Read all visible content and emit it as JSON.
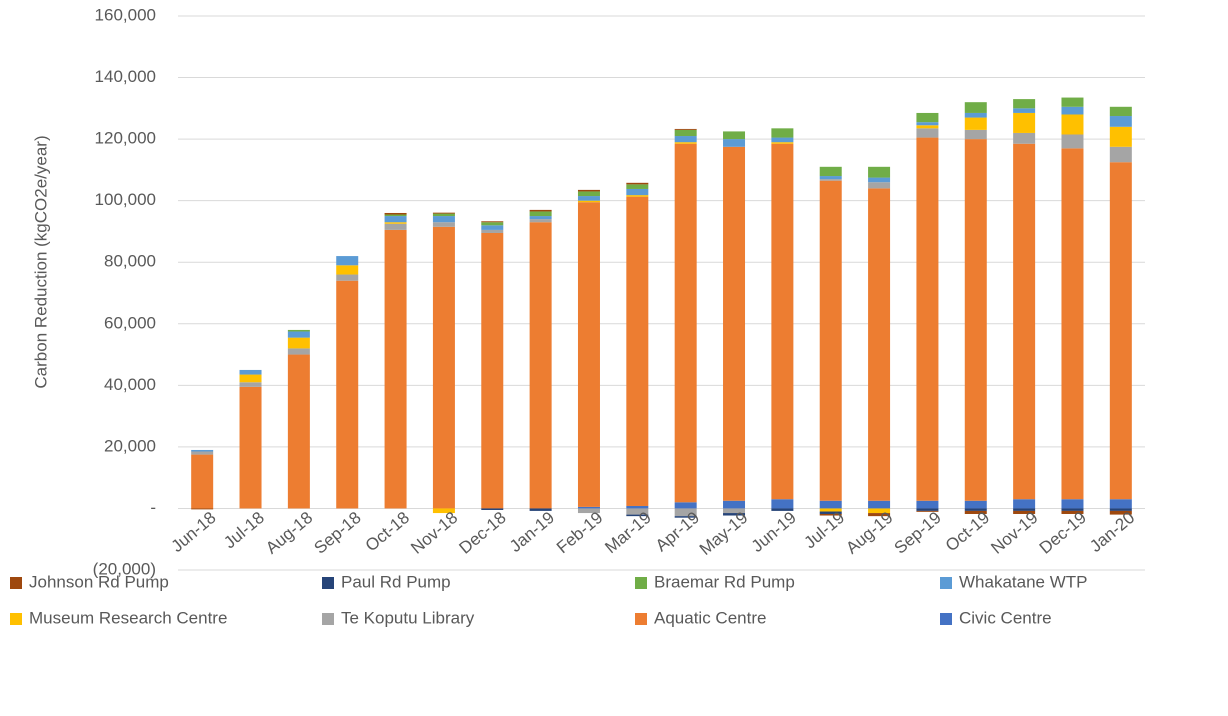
{
  "chart_data": {
    "type": "stacked_bar",
    "y_label": "Carbon Reduction (kgCO2e/year)",
    "categories": [
      "Jun-18",
      "Jul-18",
      "Aug-18",
      "Sep-18",
      "Oct-18",
      "Nov-18",
      "Dec-18",
      "Jan-19",
      "Feb-19",
      "Mar-19",
      "Apr-19",
      "May-19",
      "Jun-19",
      "Jul-19",
      "Aug-19",
      "Sep-19",
      "Oct-19",
      "Nov-19",
      "Dec-19",
      "Jan-20"
    ],
    "series": [
      {
        "name": "Johnson Rd Pump",
        "color": "#9e480e",
        "values": [
          -300,
          0,
          0,
          0,
          500,
          300,
          300,
          500,
          500,
          500,
          300,
          0,
          0,
          -500,
          -1000,
          -300,
          -1000,
          -1000,
          -1000,
          -1200
        ]
      },
      {
        "name": "Paul Rd Pump",
        "color": "#264478",
        "values": [
          0,
          0,
          0,
          0,
          0,
          0,
          -500,
          -800,
          0,
          -500,
          -500,
          -800,
          -800,
          -800,
          0,
          -800,
          -800,
          -800,
          -800,
          -800
        ]
      },
      {
        "name": "Braemar Rd Pump",
        "color": "#70ad47",
        "values": [
          0,
          0,
          500,
          0,
          500,
          800,
          1000,
          1500,
          1500,
          1500,
          2000,
          2500,
          3000,
          3000,
          3500,
          3000,
          3500,
          3000,
          3000,
          3000
        ]
      },
      {
        "name": "Whakatane WTP",
        "color": "#5b9bd5",
        "values": [
          500,
          1500,
          2000,
          3000,
          2000,
          2000,
          1500,
          1000,
          1500,
          2000,
          2000,
          2500,
          1500,
          1000,
          1500,
          1000,
          1500,
          1500,
          2500,
          3500
        ]
      },
      {
        "name": "Museum Research Centre",
        "color": "#ffc000",
        "values": [
          0,
          2500,
          3500,
          3000,
          500,
          -1500,
          0,
          0,
          500,
          500,
          500,
          0,
          500,
          -1000,
          -1500,
          1000,
          4000,
          6500,
          6500,
          6500
        ]
      },
      {
        "name": "Te Koputu Library",
        "color": "#a5a5a5",
        "values": [
          1000,
          1500,
          2000,
          2000,
          2000,
          1500,
          1000,
          1000,
          -1500,
          -2000,
          -2500,
          -1500,
          0,
          500,
          2000,
          3000,
          3000,
          3500,
          4500,
          5000
        ]
      },
      {
        "name": "Aquatic Centre",
        "color": "#ed7d31",
        "values": [
          17500,
          39500,
          50000,
          74000,
          90500,
          91500,
          89500,
          93000,
          99000,
          100500,
          116500,
          115000,
          115500,
          104000,
          101500,
          118000,
          117500,
          115500,
          114000,
          109500
        ]
      },
      {
        "name": "Civic Centre",
        "color": "#4472c4",
        "values": [
          0,
          0,
          0,
          0,
          0,
          0,
          0,
          0,
          500,
          800,
          2000,
          2500,
          3000,
          2500,
          2500,
          2500,
          2500,
          3000,
          3000,
          3000
        ]
      }
    ],
    "ylim": [
      -20000,
      160000
    ],
    "yticks": [
      {
        "value": -20000,
        "label": "(20,000)"
      },
      {
        "value": 0,
        "label": "-"
      },
      {
        "value": 20000,
        "label": "20,000"
      },
      {
        "value": 40000,
        "label": "40,000"
      },
      {
        "value": 60000,
        "label": "60,000"
      },
      {
        "value": 80000,
        "label": "80,000"
      },
      {
        "value": 100000,
        "label": "100,000"
      },
      {
        "value": 120000,
        "label": "120,000"
      },
      {
        "value": 140000,
        "label": "140,000"
      },
      {
        "value": 160000,
        "label": "160,000"
      }
    ],
    "grid": true,
    "legend": "bottom"
  }
}
